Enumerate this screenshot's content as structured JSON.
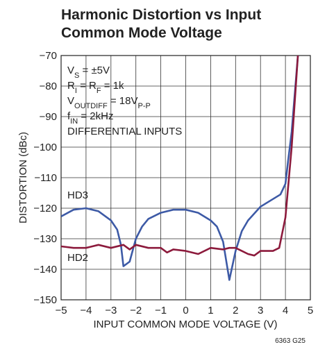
{
  "chart_data": {
    "type": "line",
    "title": [
      "Harmonic Distortion vs Input",
      "Common Mode Voltage"
    ],
    "xlabel": "INPUT COMMON MODE VOLTAGE (V)",
    "ylabel": "DISTORTION (dBc)",
    "annotations": [
      [
        "V",
        "S",
        " = ±5V"
      ],
      [
        "R",
        "I",
        " = R",
        "F",
        " = 1k"
      ],
      [
        "V",
        "OUTDIFF",
        " = 18V",
        "P-P"
      ],
      [
        "f",
        "IN",
        " = 2kHz"
      ],
      [
        "DIFFERENTIAL INPUTS"
      ]
    ],
    "footnote": "6363 G25",
    "xlim": [
      -5,
      5
    ],
    "ylim": [
      -150,
      -70
    ],
    "xticks": [
      {
        "value": -5,
        "label": "−5"
      },
      {
        "value": -4,
        "label": "−4"
      },
      {
        "value": -3,
        "label": "−3"
      },
      {
        "value": -2,
        "label": "−2"
      },
      {
        "value": -1,
        "label": "−1"
      },
      0,
      1,
      2,
      3,
      4,
      5
    ],
    "yticks": [
      {
        "value": -70,
        "label": "−70"
      },
      {
        "value": -80,
        "label": "−80"
      },
      {
        "value": -90,
        "label": "−90"
      },
      {
        "value": -100,
        "label": "−100"
      },
      {
        "value": -110,
        "label": "−110"
      },
      {
        "value": -120,
        "label": "−120"
      },
      {
        "value": -130,
        "label": "−130"
      },
      {
        "value": -140,
        "label": "−140"
      },
      {
        "value": -150,
        "label": "−150"
      }
    ],
    "grid": true,
    "series": [
      {
        "name": "HD3",
        "color": "#3d5aa6",
        "x": [
          -5,
          -4.5,
          -4,
          -3.5,
          -3,
          -2.75,
          -2.6,
          -2.5,
          -2.25,
          -2,
          -1.75,
          -1.5,
          -1,
          -0.5,
          0,
          0.5,
          1,
          1.25,
          1.5,
          1.75,
          2,
          2.25,
          2.5,
          3,
          3.5,
          3.8,
          4,
          4.1,
          4.25,
          4.5
        ],
        "values": [
          -122.7,
          -120.5,
          -120,
          -121,
          -124,
          -127,
          -132,
          -139,
          -137.5,
          -130,
          -126,
          -123.5,
          -121.5,
          -120.5,
          -120.5,
          -121.5,
          -124,
          -126,
          -131,
          -143.5,
          -134,
          -127.5,
          -124,
          -119.5,
          -117,
          -115.5,
          -112,
          -105,
          -95,
          -70
        ]
      },
      {
        "name": "HD2",
        "color": "#8c1a3c",
        "x": [
          -5,
          -4.5,
          -4,
          -3.5,
          -3,
          -2.5,
          -2.25,
          -2,
          -1.5,
          -1,
          -0.75,
          -0.5,
          0,
          0.5,
          1,
          1.5,
          1.75,
          2,
          2.25,
          2.5,
          2.75,
          3,
          3.5,
          3.75,
          4,
          4.25,
          4.5
        ],
        "values": [
          -132.5,
          -133,
          -133,
          -132,
          -133,
          -132,
          -133.5,
          -132,
          -133,
          -133,
          -134.5,
          -133.5,
          -134,
          -135,
          -133,
          -133.5,
          -133,
          -133,
          -134,
          -135,
          -135.5,
          -134,
          -134,
          -133,
          -123,
          -100,
          -70
        ]
      }
    ]
  }
}
